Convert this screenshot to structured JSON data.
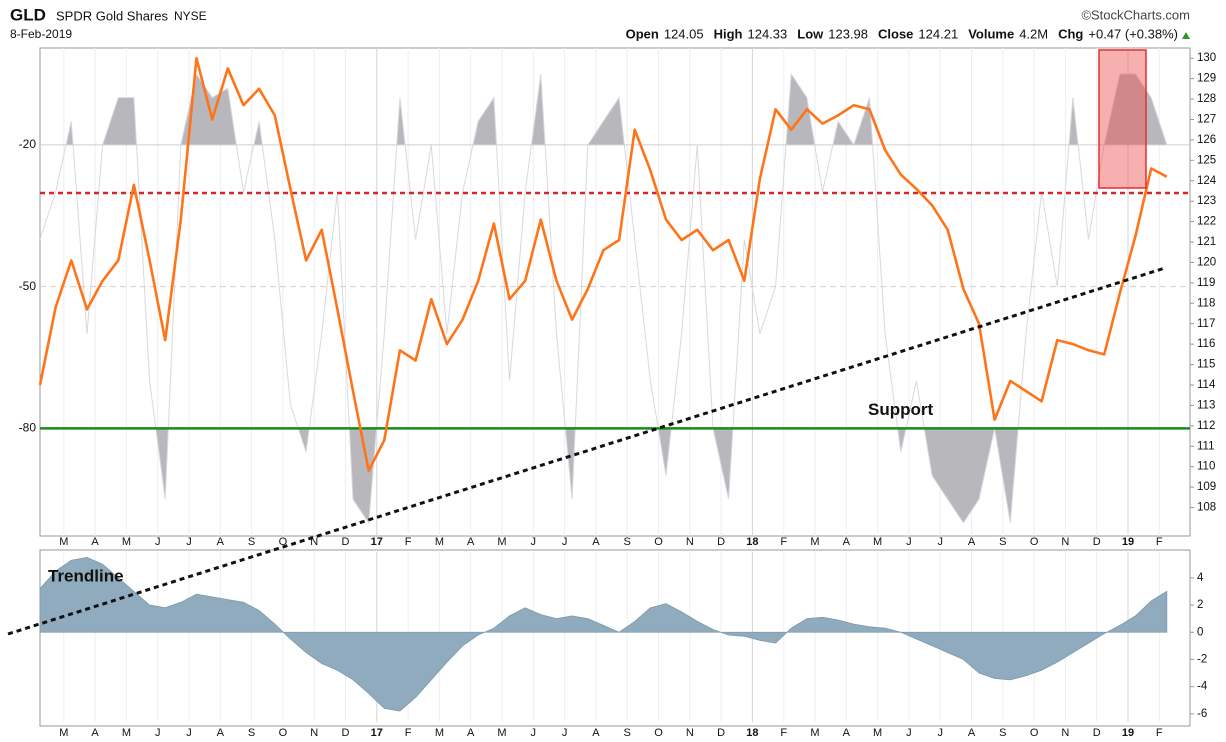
{
  "header": {
    "symbol": "GLD",
    "name": "SPDR Gold Shares",
    "exchange": "NYSE",
    "date": "8-Feb-2019",
    "credit": "©StockCharts.com",
    "stats": [
      {
        "label": "Open",
        "value": "124.05"
      },
      {
        "label": "High",
        "value": "124.33"
      },
      {
        "label": "Low",
        "value": "123.98"
      },
      {
        "label": "Close",
        "value": "124.21"
      },
      {
        "label": "Volume",
        "value": "4.2M"
      },
      {
        "label": "Chg",
        "value": "+0.47 (+0.38%)"
      }
    ]
  },
  "chart_data": [
    {
      "type": "line",
      "xticks": [
        "M",
        "A",
        "M",
        "J",
        "J",
        "A",
        "S",
        "O",
        "N",
        "D",
        "17",
        "F",
        "M",
        "A",
        "M",
        "J",
        "J",
        "A",
        "S",
        "O",
        "N",
        "D",
        "18",
        "F",
        "M",
        "A",
        "M",
        "J",
        "J",
        "A",
        "S",
        "O",
        "N",
        "D",
        "19",
        "F"
      ],
      "series": [
        {
          "color": "#ff7418",
          "values": [
            114.0,
            117.8,
            120.1,
            117.7,
            119.1,
            120.1,
            123.8,
            120.1,
            116.2,
            122.1,
            130.0,
            127.0,
            129.5,
            127.7,
            128.5,
            127.2,
            123.6,
            120.1,
            121.6,
            117.7,
            113.7,
            109.8,
            111.3,
            115.7,
            115.2,
            118.2,
            116.0,
            117.2,
            119.1,
            121.9,
            118.2,
            119.1,
            122.1,
            119.1,
            117.2,
            118.7,
            120.6,
            121.1,
            126.5,
            124.5,
            122.1,
            121.1,
            121.6,
            120.6,
            121.1,
            119.1,
            124.1,
            127.5,
            126.5,
            127.5,
            126.8,
            127.2,
            127.7,
            127.5,
            125.5,
            124.3,
            123.6,
            122.8,
            121.6,
            118.7,
            117.0,
            112.3,
            114.2,
            113.7,
            113.2,
            116.2,
            116.0,
            115.7,
            115.5,
            118.5,
            121.3,
            124.6,
            124.2
          ]
        },
        {
          "color": "#b8b8bc",
          "axis": "y2",
          "values": [
            -40,
            -30,
            -15,
            -60,
            -20,
            -10,
            -10,
            -70,
            -95,
            -20,
            -5,
            -10,
            -8,
            -30,
            -15,
            -40,
            -75,
            -85,
            -60,
            -30,
            -95,
            -100,
            -60,
            -10,
            -40,
            -20,
            -60,
            -30,
            -15,
            -10,
            -70,
            -30,
            -5,
            -60,
            -95,
            -20,
            -15,
            -10,
            -40,
            -70,
            -90,
            -60,
            -20,
            -80,
            -95,
            -40,
            -60,
            -50,
            -5,
            -10,
            -30,
            -15,
            -20,
            -10,
            -60,
            -85,
            -70,
            -90,
            -95,
            -100,
            -95,
            -80,
            -100,
            -60,
            -30,
            -50,
            -10,
            -40,
            -20,
            -5,
            -5,
            -10,
            -20
          ]
        }
      ],
      "ylim": [
        106.9,
        130.5
      ],
      "yticks": [
        108,
        109,
        110,
        111,
        112,
        113,
        114,
        115,
        116,
        117,
        118,
        119,
        120,
        121,
        122,
        123,
        124,
        125,
        126,
        127,
        128,
        129,
        130
      ],
      "y2lim": [
        -101.5,
        0.5
      ],
      "y2ticks": [
        -20,
        -50,
        -80
      ],
      "reference_lines": [
        {
          "axis": "y",
          "value": 123.4,
          "color": "#d62728"
        },
        {
          "axis": "y2",
          "value": -80,
          "color": "#1a8a1a",
          "label": "Support"
        }
      ]
    },
    {
      "type": "area",
      "color": "#8fabbd",
      "annotation": "Trendline",
      "values": [
        3.2,
        4.5,
        5.3,
        5.5,
        5.0,
        4.0,
        3.0,
        2.0,
        1.8,
        2.2,
        2.8,
        2.6,
        2.4,
        2.2,
        1.6,
        0.6,
        -0.5,
        -1.5,
        -2.3,
        -2.8,
        -3.5,
        -4.5,
        -5.6,
        -5.8,
        -4.8,
        -3.5,
        -2.2,
        -1.0,
        -0.2,
        0.3,
        1.2,
        1.8,
        1.3,
        1.0,
        1.2,
        1.0,
        0.5,
        0.0,
        0.8,
        1.8,
        2.1,
        1.5,
        0.8,
        0.2,
        -0.2,
        -0.3,
        -0.6,
        -0.8,
        0.3,
        1.0,
        1.1,
        0.9,
        0.6,
        0.4,
        0.3,
        0.0,
        -0.5,
        -1.0,
        -1.5,
        -2.0,
        -3.0,
        -3.4,
        -3.5,
        -3.2,
        -2.8,
        -2.2,
        -1.5,
        -0.8,
        -0.1,
        0.5,
        1.2,
        2.3,
        3.0
      ],
      "ylim": [
        -6.6,
        5.9
      ],
      "yticks": [
        4,
        2,
        0,
        -2,
        -4,
        -6
      ]
    }
  ]
}
